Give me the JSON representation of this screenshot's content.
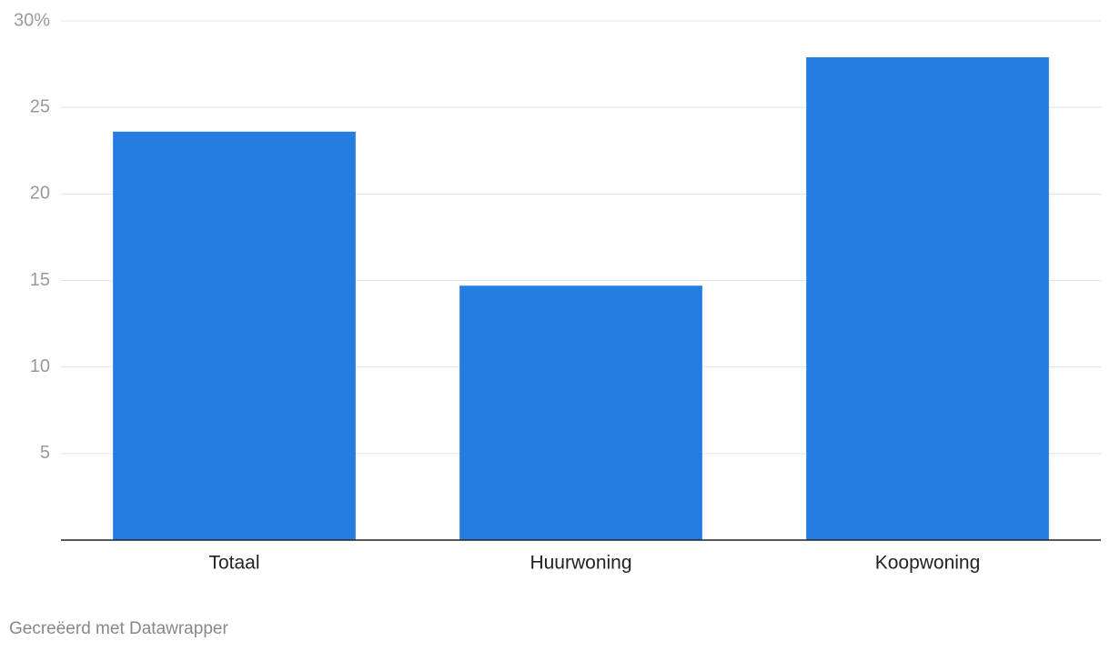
{
  "chart_data": {
    "type": "bar",
    "categories": [
      "Totaal",
      "Huurwoning",
      "Koopwoning"
    ],
    "values": [
      23.6,
      14.7,
      27.9
    ],
    "color": "#247de0",
    "ylim": [
      0,
      30
    ],
    "yticks": [
      5,
      10,
      15,
      20,
      25,
      {
        "value": 30,
        "label": "30%"
      }
    ],
    "grid": true,
    "credit": "Gecreëerd met Datawrapper"
  }
}
